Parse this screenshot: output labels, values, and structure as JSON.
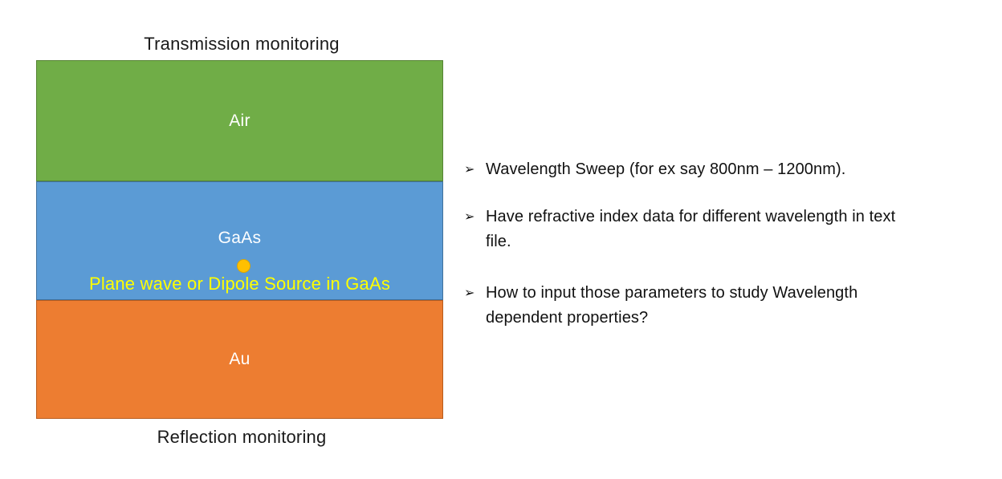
{
  "diagram": {
    "top_label": "Transmission monitoring",
    "bottom_label": "Reflection monitoring",
    "layers": [
      {
        "name": "Air",
        "fill": "#70AD47",
        "border": "#568434",
        "text_color": "#FFFFFF"
      },
      {
        "name": "GaAs",
        "fill": "#5B9BD5",
        "border": "#41719C",
        "text_color": "#FFFFFF"
      },
      {
        "name": "Au",
        "fill": "#ED7D31",
        "border": "#B85C1E",
        "text_color": "#FFFFFF"
      }
    ],
    "source": {
      "label": "Plane wave or Dipole Source in GaAs",
      "label_color": "#FFFF00",
      "dot_color": "#FFC000"
    }
  },
  "notes": {
    "marker": "➢",
    "items": [
      {
        "lines": [
          "Wavelength Sweep (for ex say 800nm – 1200nm)."
        ]
      },
      {
        "lines": [
          "Have refractive index data for different wavelength in text",
          "file."
        ]
      },
      {
        "lines": [
          "How to input those parameters to study Wavelength",
          "dependent properties?"
        ]
      }
    ]
  }
}
